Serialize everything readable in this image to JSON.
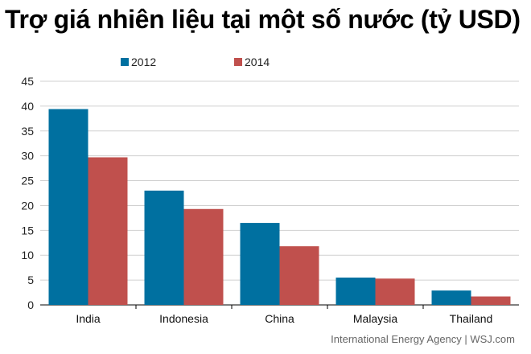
{
  "title": "Trợ giá nhiên liệu tại một số nước (tỷ USD)",
  "source": "International Energy Agency  |  WSJ.com",
  "chart_data": {
    "type": "bar",
    "categories": [
      "India",
      "Indonesia",
      "China",
      "Malaysia",
      "Thailand"
    ],
    "series": [
      {
        "name": "2012",
        "color": "#0070a0",
        "values": [
          39.4,
          23.0,
          16.5,
          5.5,
          2.9
        ]
      },
      {
        "name": "2014",
        "color": "#c0504d",
        "values": [
          29.7,
          19.3,
          11.8,
          5.3,
          1.7
        ]
      }
    ],
    "yticks": [
      0,
      5,
      10,
      15,
      20,
      25,
      30,
      35,
      40,
      45
    ],
    "ylim": [
      0,
      45
    ],
    "grid": true,
    "legend": "top-left"
  }
}
